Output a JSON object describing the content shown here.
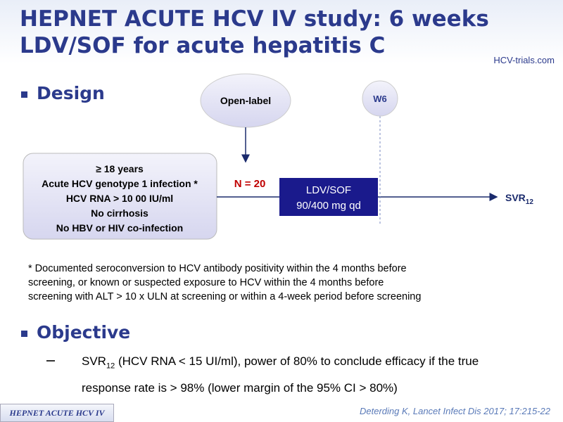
{
  "header": {
    "title_line1": "HEPNET ACUTE HCV IV study: 6 weeks",
    "title_line2": "LDV/SOF for acute hepatitis C",
    "logo": "HCV-trials.com"
  },
  "design": {
    "heading": "Design",
    "label": "Open-label",
    "week": "W6",
    "inclusion": [
      "≥ 18 years",
      "Acute HCV genotype  1 infection *",
      "HCV RNA > 10 00 IU/ml",
      "No cirrhosis",
      "No HBV or HIV co-infection"
    ],
    "n": "N = 20",
    "treatment": [
      "LDV/SOF",
      "90/400 mg qd"
    ],
    "outcome": "SVR",
    "outcome_sub": "12",
    "footnote": [
      "* Documented  seroconversion to HCV  antibody positivity within the 4 months  before",
      "screening, or known  or suspected exposure to HCV  within the 4 months  before",
      "screening with ALT > 10 x ULN at screening or within a 4-week period before screening"
    ]
  },
  "objective": {
    "heading": "Objective",
    "text_pre": "SVR",
    "text_sub": "12",
    "text_line1": " (HCV RNA < 15 UI/ml), power of 80% to conclude efficacy if the true",
    "text_line2": "response rate is > 98% (lower margin of the 95% CI > 80%)"
  },
  "footer": {
    "study": "HEPNET ACUTE HCV IV",
    "citation": "Deterding K, Lancet Infect Dis 2017; 17:215-22"
  }
}
